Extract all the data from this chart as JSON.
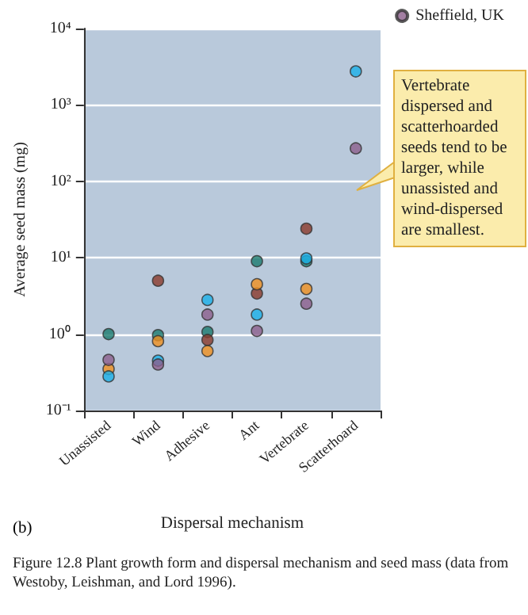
{
  "chart_data": {
    "type": "scatter",
    "ylabel": "Average seed mass (mg)",
    "xlabel": "Dispersal mechanism",
    "categories": [
      "Unassisted",
      "Wind",
      "Adhesive",
      "Ant",
      "Vertebrate",
      "Scatterhoard"
    ],
    "series": [
      {
        "color": "#1a7a6e",
        "values": [
          1.0,
          0.97,
          1.07,
          9,
          9,
          null
        ]
      },
      {
        "color": "#8b3a2a",
        "values": [
          null,
          5.0,
          0.84,
          3.4,
          24,
          null
        ]
      },
      {
        "color": "#f0901e",
        "values": [
          0.35,
          0.81,
          0.6,
          4.5,
          3.9,
          null
        ]
      },
      {
        "color": "#1ab0e8",
        "values": [
          0.28,
          0.45,
          2.8,
          1.8,
          9.8,
          2750
        ]
      },
      {
        "name": "Sheffield, UK",
        "color": "#8c5f8c",
        "values": [
          0.46,
          0.4,
          1.8,
          1.1,
          2.5,
          270
        ]
      }
    ],
    "log": "y",
    "ylim": [
      0.1,
      10000
    ],
    "yticks": [
      {
        "value": 0.1,
        "label": "10⁻¹"
      },
      {
        "value": 1,
        "label": "10⁰"
      },
      {
        "value": 10,
        "label": "10¹"
      },
      {
        "value": 100,
        "label": "10²"
      },
      {
        "value": 1000,
        "label": "10³"
      },
      {
        "value": 10000,
        "label": "10⁴"
      }
    ],
    "grid": "y",
    "legend": "top right",
    "marker": "circle",
    "annotations": [
      "Vertebrate dispersed and scatterhoarded seeds tend to be larger, while unassisted and wind-dispersed are smallest.",
      "(b)",
      "Figure 12.8 Plant growth form and dispersal mechanism and seed mass (data from Westoby, Leishman, and Lord 1996)."
    ]
  }
}
